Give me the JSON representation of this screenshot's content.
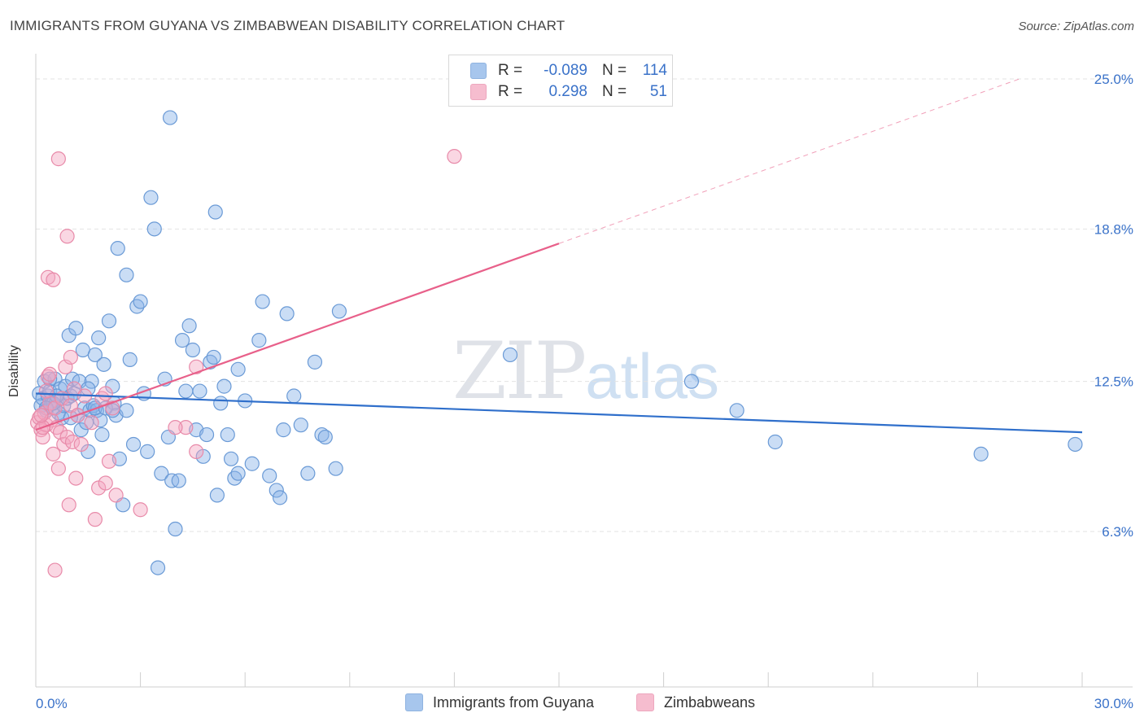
{
  "title": "IMMIGRANTS FROM GUYANA VS ZIMBABWEAN DISABILITY CORRELATION CHART",
  "source": "Source: ZipAtlas.com",
  "watermark": {
    "zip": "ZIP",
    "atlas": "atlas"
  },
  "legend": {
    "rows": [
      {
        "r_label": "R =",
        "r_value": "-0.089",
        "n_label": "N =",
        "n_value": "114",
        "color": "#8ab4e8"
      },
      {
        "r_label": "R =",
        "r_value": "0.298",
        "n_label": "N =",
        "n_value": "51",
        "color": "#f4a7c0"
      }
    ]
  },
  "bottom_legend": {
    "series1": "Immigrants from Guyana",
    "series2": "Zimbabweans"
  },
  "chart_data": {
    "type": "scatter",
    "title": "IMMIGRANTS FROM GUYANA VS ZIMBABWEAN DISABILITY CORRELATION CHART",
    "xlabel": "",
    "ylabel": "Disability",
    "xlim": [
      0,
      30
    ],
    "ylim": [
      0,
      26.3
    ],
    "x_tick_labels": [
      "0.0%",
      "30.0%"
    ],
    "y_ticks": [
      6.3,
      12.5,
      18.8,
      25.0
    ],
    "y_tick_labels": [
      "6.3%",
      "12.5%",
      "18.8%",
      "25.0%"
    ],
    "grid": true,
    "legend_position": "top-center",
    "series": [
      {
        "name": "Immigrants from Guyana",
        "color": "#8ab4e8",
        "stroke": "#6a9ad6",
        "trend": {
          "x": [
            0,
            30
          ],
          "y": [
            12.0,
            10.4
          ],
          "color": "#2f6fcb"
        },
        "points": [
          [
            0.1,
            12.0
          ],
          [
            0.15,
            11.5
          ],
          [
            0.2,
            11.8
          ],
          [
            0.25,
            12.5
          ],
          [
            0.3,
            11.3
          ],
          [
            0.35,
            11.9
          ],
          [
            0.4,
            12.1
          ],
          [
            0.45,
            11.6
          ],
          [
            0.5,
            11.4
          ],
          [
            0.55,
            12.6
          ],
          [
            0.6,
            11.7
          ],
          [
            0.65,
            11.2
          ],
          [
            0.7,
            12.2
          ],
          [
            0.75,
            11.0
          ],
          [
            0.8,
            11.5
          ],
          [
            0.85,
            12.3
          ],
          [
            0.9,
            11.8
          ],
          [
            0.95,
            14.4
          ],
          [
            1.0,
            11.9
          ],
          [
            1.05,
            12.6
          ],
          [
            1.1,
            12.0
          ],
          [
            1.15,
            14.7
          ],
          [
            1.2,
            11.1
          ],
          [
            1.25,
            12.5
          ],
          [
            1.3,
            10.5
          ],
          [
            1.35,
            13.8
          ],
          [
            1.4,
            11.4
          ],
          [
            1.45,
            10.8
          ],
          [
            1.5,
            9.6
          ],
          [
            1.55,
            11.3
          ],
          [
            1.6,
            12.5
          ],
          [
            1.65,
            11.5
          ],
          [
            1.7,
            13.6
          ],
          [
            1.75,
            11.3
          ],
          [
            1.8,
            14.3
          ],
          [
            1.85,
            10.9
          ],
          [
            1.9,
            10.3
          ],
          [
            1.95,
            13.2
          ],
          [
            2.1,
            15.0
          ],
          [
            2.2,
            12.3
          ],
          [
            2.25,
            11.6
          ],
          [
            2.3,
            11.1
          ],
          [
            2.4,
            9.3
          ],
          [
            2.5,
            7.4
          ],
          [
            2.6,
            16.9
          ],
          [
            2.7,
            13.4
          ],
          [
            2.8,
            9.9
          ],
          [
            2.9,
            15.6
          ],
          [
            3.0,
            15.8
          ],
          [
            3.1,
            12.0
          ],
          [
            3.2,
            9.6
          ],
          [
            3.3,
            20.1
          ],
          [
            3.4,
            18.8
          ],
          [
            3.5,
            4.8
          ],
          [
            3.6,
            8.7
          ],
          [
            3.7,
            12.6
          ],
          [
            3.8,
            10.2
          ],
          [
            3.9,
            8.4
          ],
          [
            4.0,
            6.4
          ],
          [
            4.1,
            8.4
          ],
          [
            4.2,
            14.2
          ],
          [
            4.3,
            12.1
          ],
          [
            4.4,
            14.8
          ],
          [
            4.5,
            13.8
          ],
          [
            4.6,
            10.5
          ],
          [
            4.7,
            12.1
          ],
          [
            4.8,
            9.4
          ],
          [
            4.9,
            10.3
          ],
          [
            2.35,
            18.0
          ],
          [
            3.85,
            23.4
          ],
          [
            5.0,
            13.3
          ],
          [
            5.1,
            13.5
          ],
          [
            5.2,
            7.8
          ],
          [
            5.3,
            11.6
          ],
          [
            5.4,
            12.3
          ],
          [
            5.5,
            10.3
          ],
          [
            5.6,
            9.3
          ],
          [
            5.7,
            8.5
          ],
          [
            5.8,
            13.0
          ],
          [
            6.0,
            11.7
          ],
          [
            6.2,
            9.1
          ],
          [
            6.4,
            14.2
          ],
          [
            6.5,
            15.8
          ],
          [
            6.7,
            8.6
          ],
          [
            6.9,
            8.0
          ],
          [
            7.0,
            7.7
          ],
          [
            7.1,
            10.5
          ],
          [
            7.2,
            15.3
          ],
          [
            7.4,
            11.9
          ],
          [
            7.6,
            10.7
          ],
          [
            7.8,
            8.7
          ],
          [
            8.0,
            13.3
          ],
          [
            8.2,
            10.3
          ],
          [
            8.3,
            10.2
          ],
          [
            8.6,
            8.9
          ],
          [
            8.7,
            15.4
          ],
          [
            13.6,
            13.6
          ],
          [
            18.8,
            12.5
          ],
          [
            20.1,
            11.3
          ],
          [
            21.2,
            10.0
          ],
          [
            27.1,
            9.5
          ],
          [
            29.8,
            9.9
          ],
          [
            5.15,
            19.5
          ],
          [
            0.5,
            11.6
          ],
          [
            0.3,
            11.4
          ],
          [
            0.6,
            11.9
          ],
          [
            0.4,
            12.6
          ],
          [
            1.0,
            11.0
          ],
          [
            1.7,
            11.4
          ],
          [
            2.0,
            11.4
          ],
          [
            2.2,
            11.3
          ],
          [
            2.6,
            11.3
          ],
          [
            5.8,
            8.7
          ],
          [
            1.5,
            12.2
          ]
        ]
      },
      {
        "name": "Zimbabweans",
        "color": "#f4a7c0",
        "stroke": "#e88aa9",
        "trend": {
          "x": [
            0,
            15
          ],
          "y": [
            10.5,
            18.2
          ],
          "color": "#e8608a"
        },
        "trend_ext": {
          "x": [
            15,
            28.2
          ],
          "y": [
            18.2,
            25.0
          ]
        },
        "points": [
          [
            0.05,
            10.8
          ],
          [
            0.1,
            11.0
          ],
          [
            0.15,
            10.5
          ],
          [
            0.2,
            10.2
          ],
          [
            0.25,
            11.2
          ],
          [
            0.3,
            10.7
          ],
          [
            0.35,
            12.7
          ],
          [
            0.4,
            11.6
          ],
          [
            0.45,
            10.9
          ],
          [
            0.5,
            9.5
          ],
          [
            0.55,
            11.4
          ],
          [
            0.6,
            10.6
          ],
          [
            0.65,
            8.9
          ],
          [
            0.7,
            10.4
          ],
          [
            0.75,
            11.8
          ],
          [
            0.8,
            9.9
          ],
          [
            0.85,
            13.1
          ],
          [
            0.9,
            10.2
          ],
          [
            0.95,
            7.4
          ],
          [
            1.0,
            11.5
          ],
          [
            1.05,
            10.0
          ],
          [
            1.1,
            12.2
          ],
          [
            1.15,
            8.5
          ],
          [
            1.2,
            11.1
          ],
          [
            1.3,
            9.9
          ],
          [
            1.4,
            11.9
          ],
          [
            1.6,
            10.8
          ],
          [
            1.7,
            6.8
          ],
          [
            1.8,
            8.1
          ],
          [
            1.9,
            11.8
          ],
          [
            2.0,
            12.0
          ],
          [
            2.1,
            9.2
          ],
          [
            2.2,
            11.4
          ],
          [
            2.3,
            7.8
          ],
          [
            2.0,
            8.3
          ],
          [
            3.0,
            7.2
          ],
          [
            4.3,
            10.6
          ],
          [
            4.6,
            9.6
          ],
          [
            4.6,
            13.1
          ],
          [
            4.0,
            10.6
          ],
          [
            0.3,
            12.1
          ],
          [
            0.35,
            16.8
          ],
          [
            0.5,
            16.7
          ],
          [
            0.65,
            21.7
          ],
          [
            0.9,
            18.5
          ],
          [
            0.55,
            4.7
          ],
          [
            0.4,
            12.8
          ],
          [
            1.0,
            13.5
          ],
          [
            0.2,
            10.6
          ],
          [
            0.15,
            11.1
          ],
          [
            12.0,
            21.8
          ]
        ]
      }
    ]
  }
}
